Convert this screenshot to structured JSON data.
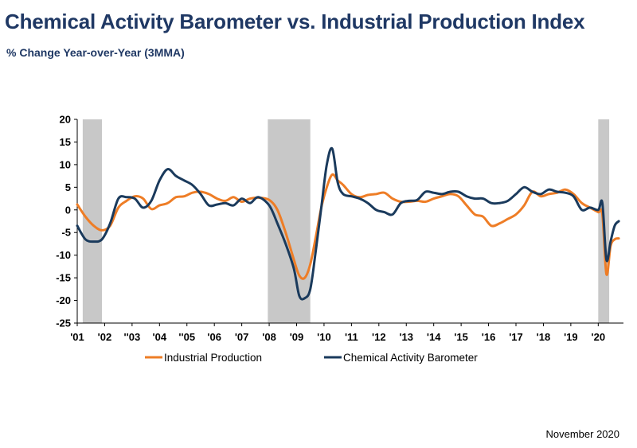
{
  "header": {
    "title": "Chemical Activity Barometer vs. Industrial Production Index",
    "subtitle": "% Change Year-over-Year (3MMA)"
  },
  "footer": {
    "date": "November 2020"
  },
  "colors": {
    "ip": "#ee7d26",
    "cab": "#1a3a5c",
    "recession": "#c8c8c8",
    "title": "#1f3864"
  },
  "chart_data": {
    "type": "line",
    "title": "Chemical Activity Barometer vs. Industrial Production Index",
    "subtitle": "% Change Year-over-Year (3MMA)",
    "xlabel": "",
    "ylabel": "",
    "ylim": [
      -25,
      20
    ],
    "yticks": [
      20,
      15,
      10,
      5,
      0,
      -5,
      -10,
      -15,
      -20,
      -25
    ],
    "xlim": [
      2001.0,
      2020.92
    ],
    "xtick_labels": [
      "'01",
      "'02",
      "''03",
      "'04",
      "''05",
      "'06",
      "'07",
      "'08",
      "'09",
      "'10",
      "'11",
      "'12",
      "'13",
      "'14",
      "'15",
      "'16",
      "'17",
      "'18",
      "'19",
      "'20"
    ],
    "xtick_positions": [
      2001,
      2002,
      2003,
      2004,
      2005,
      2006,
      2007,
      2008,
      2009,
      2010,
      2011,
      2012,
      2013,
      2014,
      2015,
      2016,
      2017,
      2018,
      2019,
      2020
    ],
    "grid": false,
    "legend_position": "bottom",
    "recessions": [
      [
        2001.2,
        2001.9
      ],
      [
        2007.95,
        2009.5
      ],
      [
        2020.0,
        2020.4
      ]
    ],
    "series": [
      {
        "name": "Industrial Production",
        "color": "#ee7d26",
        "x": [
          2001.0,
          2001.3,
          2001.6,
          2001.9,
          2002.2,
          2002.5,
          2002.8,
          2003.1,
          2003.4,
          2003.7,
          2004.0,
          2004.3,
          2004.6,
          2004.9,
          2005.2,
          2005.5,
          2005.8,
          2006.1,
          2006.4,
          2006.7,
          2007.0,
          2007.3,
          2007.6,
          2008.0,
          2008.3,
          2008.6,
          2008.9,
          2009.1,
          2009.3,
          2009.5,
          2009.7,
          2009.9,
          2010.1,
          2010.3,
          2010.5,
          2010.7,
          2011.0,
          2011.3,
          2011.6,
          2011.9,
          2012.2,
          2012.5,
          2012.8,
          2013.1,
          2013.4,
          2013.7,
          2014.0,
          2014.3,
          2014.6,
          2014.9,
          2015.2,
          2015.5,
          2015.8,
          2016.1,
          2016.4,
          2016.7,
          2017.0,
          2017.3,
          2017.6,
          2017.9,
          2018.2,
          2018.5,
          2018.8,
          2019.1,
          2019.4,
          2019.7,
          2020.0,
          2020.15,
          2020.3,
          2020.45,
          2020.6,
          2020.75
        ],
        "values": [
          1.2,
          -1.5,
          -3.5,
          -4.5,
          -3.5,
          0.5,
          2.0,
          3.0,
          2.5,
          0.2,
          1.0,
          1.5,
          2.8,
          3.0,
          3.8,
          4.0,
          3.5,
          2.5,
          2.0,
          2.8,
          1.8,
          2.5,
          2.7,
          2.2,
          0.0,
          -5.0,
          -11.0,
          -14.5,
          -15.0,
          -12.0,
          -6.0,
          0.5,
          5.0,
          7.8,
          6.5,
          5.5,
          3.5,
          2.8,
          3.3,
          3.5,
          3.8,
          2.5,
          1.8,
          1.8,
          2.0,
          1.8,
          2.5,
          3.0,
          3.5,
          3.0,
          1.0,
          -1.0,
          -1.5,
          -3.5,
          -3.0,
          -2.0,
          -1.0,
          1.0,
          4.0,
          3.0,
          3.5,
          3.8,
          4.5,
          3.5,
          1.5,
          0.5,
          -0.5,
          -1.0,
          -14.2,
          -8.0,
          -6.5,
          -6.3
        ]
      },
      {
        "name": "Chemical Activity Barometer",
        "color": "#1a3a5c",
        "x": [
          2001.0,
          2001.3,
          2001.6,
          2001.9,
          2002.2,
          2002.5,
          2002.8,
          2003.1,
          2003.4,
          2003.7,
          2004.0,
          2004.3,
          2004.6,
          2004.9,
          2005.2,
          2005.5,
          2005.8,
          2006.1,
          2006.4,
          2006.7,
          2007.0,
          2007.3,
          2007.6,
          2008.0,
          2008.3,
          2008.6,
          2008.9,
          2009.1,
          2009.3,
          2009.5,
          2009.7,
          2009.9,
          2010.1,
          2010.3,
          2010.5,
          2010.7,
          2011.0,
          2011.3,
          2011.6,
          2011.9,
          2012.2,
          2012.5,
          2012.8,
          2013.1,
          2013.4,
          2013.7,
          2014.0,
          2014.3,
          2014.6,
          2014.9,
          2015.2,
          2015.5,
          2015.8,
          2016.1,
          2016.4,
          2016.7,
          2017.0,
          2017.3,
          2017.6,
          2017.9,
          2018.2,
          2018.5,
          2018.8,
          2019.1,
          2019.4,
          2019.7,
          2020.0,
          2020.15,
          2020.3,
          2020.45,
          2020.6,
          2020.75
        ],
        "values": [
          -3.5,
          -6.5,
          -7.0,
          -6.5,
          -3.0,
          2.5,
          2.8,
          2.5,
          0.5,
          2.0,
          6.5,
          9.0,
          7.5,
          6.5,
          5.5,
          3.5,
          1.0,
          1.2,
          1.5,
          1.0,
          2.5,
          1.5,
          2.8,
          1.0,
          -3.0,
          -7.5,
          -13.0,
          -19.0,
          -19.5,
          -17.5,
          -9.0,
          0.5,
          10.0,
          13.5,
          6.0,
          3.5,
          3.0,
          2.5,
          1.5,
          0.0,
          -0.5,
          -1.0,
          1.5,
          2.0,
          2.2,
          4.0,
          3.8,
          3.5,
          4.0,
          4.0,
          3.0,
          2.5,
          2.5,
          1.5,
          1.5,
          2.0,
          3.5,
          5.0,
          4.0,
          3.5,
          4.5,
          4.0,
          3.8,
          3.0,
          0.0,
          0.5,
          0.0,
          1.5,
          -11.0,
          -7.0,
          -3.5,
          -2.5
        ]
      }
    ]
  }
}
